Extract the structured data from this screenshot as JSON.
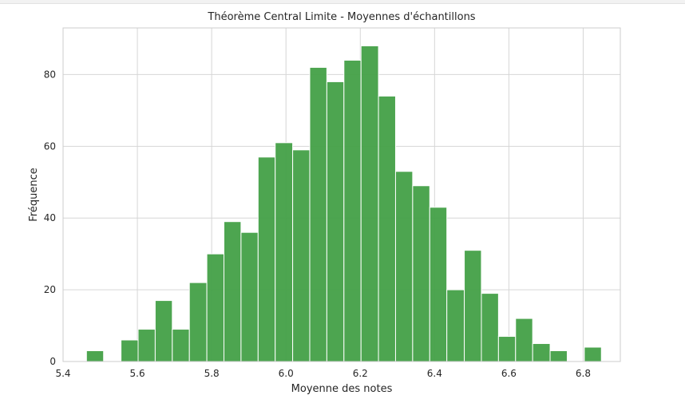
{
  "chart_data": {
    "type": "bar",
    "title": "Théorème Central Limite - Moyennes d'échantillons",
    "xlabel": "Moyenne des notes",
    "ylabel": "Fréquence",
    "xlim": [
      5.4,
      6.9
    ],
    "ylim": [
      0,
      93
    ],
    "xticks": [
      "5.4",
      "5.6",
      "5.8",
      "6.0",
      "6.2",
      "6.4",
      "6.6",
      "6.8"
    ],
    "yticks": [
      "0",
      "20",
      "40",
      "60",
      "80"
    ],
    "grid": true,
    "bar_color": "#43a047",
    "bins": [
      {
        "x0": 5.463,
        "x1": 5.509,
        "count": 3
      },
      {
        "x0": 5.509,
        "x1": 5.556,
        "count": 0
      },
      {
        "x0": 5.556,
        "x1": 5.602,
        "count": 6
      },
      {
        "x0": 5.602,
        "x1": 5.648,
        "count": 9
      },
      {
        "x0": 5.648,
        "x1": 5.694,
        "count": 17
      },
      {
        "x0": 5.694,
        "x1": 5.74,
        "count": 9
      },
      {
        "x0": 5.74,
        "x1": 5.787,
        "count": 22
      },
      {
        "x0": 5.787,
        "x1": 5.833,
        "count": 30
      },
      {
        "x0": 5.833,
        "x1": 5.879,
        "count": 39
      },
      {
        "x0": 5.879,
        "x1": 5.925,
        "count": 36
      },
      {
        "x0": 5.925,
        "x1": 5.971,
        "count": 57
      },
      {
        "x0": 5.971,
        "x1": 6.018,
        "count": 61
      },
      {
        "x0": 6.018,
        "x1": 6.064,
        "count": 59
      },
      {
        "x0": 6.064,
        "x1": 6.11,
        "count": 82
      },
      {
        "x0": 6.11,
        "x1": 6.156,
        "count": 78
      },
      {
        "x0": 6.156,
        "x1": 6.202,
        "count": 84
      },
      {
        "x0": 6.202,
        "x1": 6.249,
        "count": 88
      },
      {
        "x0": 6.249,
        "x1": 6.295,
        "count": 74
      },
      {
        "x0": 6.295,
        "x1": 6.341,
        "count": 53
      },
      {
        "x0": 6.341,
        "x1": 6.387,
        "count": 49
      },
      {
        "x0": 6.387,
        "x1": 6.433,
        "count": 43
      },
      {
        "x0": 6.433,
        "x1": 6.48,
        "count": 20
      },
      {
        "x0": 6.48,
        "x1": 6.526,
        "count": 31
      },
      {
        "x0": 6.526,
        "x1": 6.572,
        "count": 19
      },
      {
        "x0": 6.572,
        "x1": 6.618,
        "count": 7
      },
      {
        "x0": 6.618,
        "x1": 6.664,
        "count": 12
      },
      {
        "x0": 6.664,
        "x1": 6.711,
        "count": 5
      },
      {
        "x0": 6.711,
        "x1": 6.757,
        "count": 3
      },
      {
        "x0": 6.757,
        "x1": 6.803,
        "count": 0
      },
      {
        "x0": 6.803,
        "x1": 6.849,
        "count": 4
      }
    ]
  }
}
